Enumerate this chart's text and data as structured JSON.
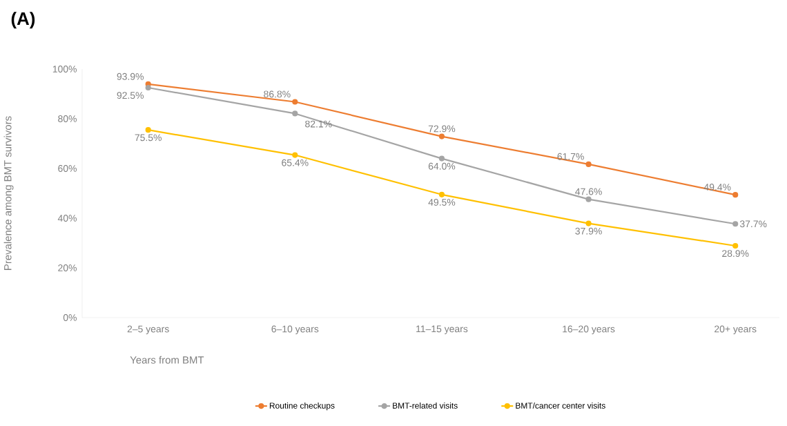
{
  "chart_data": {
    "type": "line",
    "title": "(A)",
    "xlabel": "Years from BMT",
    "ylabel": "Prevalence among BMT survivors",
    "categories": [
      "2–5 years",
      "6–10 years",
      "11–15 years",
      "16–20 years",
      "20+ years"
    ],
    "series": [
      {
        "name": "Routine checkups",
        "color": "#ed7d31",
        "values": [
          93.9,
          86.8,
          72.9,
          61.7,
          49.4
        ],
        "value_labels": [
          "93.9%",
          "86.8%",
          "72.9%",
          "61.7%",
          "49.4%"
        ]
      },
      {
        "name": "BMT-related visits",
        "color": "#a5a5a5",
        "values": [
          92.5,
          82.1,
          64.0,
          47.6,
          37.7
        ],
        "value_labels": [
          "92.5%",
          "82.1%",
          "64.0%",
          "47.6%",
          "37.7%"
        ]
      },
      {
        "name": "BMT/cancer center visits",
        "color": "#ffc000",
        "values": [
          75.5,
          65.4,
          49.5,
          37.9,
          28.9
        ],
        "value_labels": [
          "75.5%",
          "65.4%",
          "49.5%",
          "37.9%",
          "28.9%"
        ]
      }
    ],
    "ylim": [
      0,
      100
    ],
    "yticks": [
      {
        "value": 0,
        "label": "0%"
      },
      {
        "value": 20,
        "label": "20%"
      },
      {
        "value": 40,
        "label": "40%"
      },
      {
        "value": 60,
        "label": "60%"
      },
      {
        "value": 80,
        "label": "80%"
      },
      {
        "value": 100,
        "label": "100%"
      }
    ],
    "legend": "bottom",
    "marker": "circle",
    "line_style": "solid"
  }
}
